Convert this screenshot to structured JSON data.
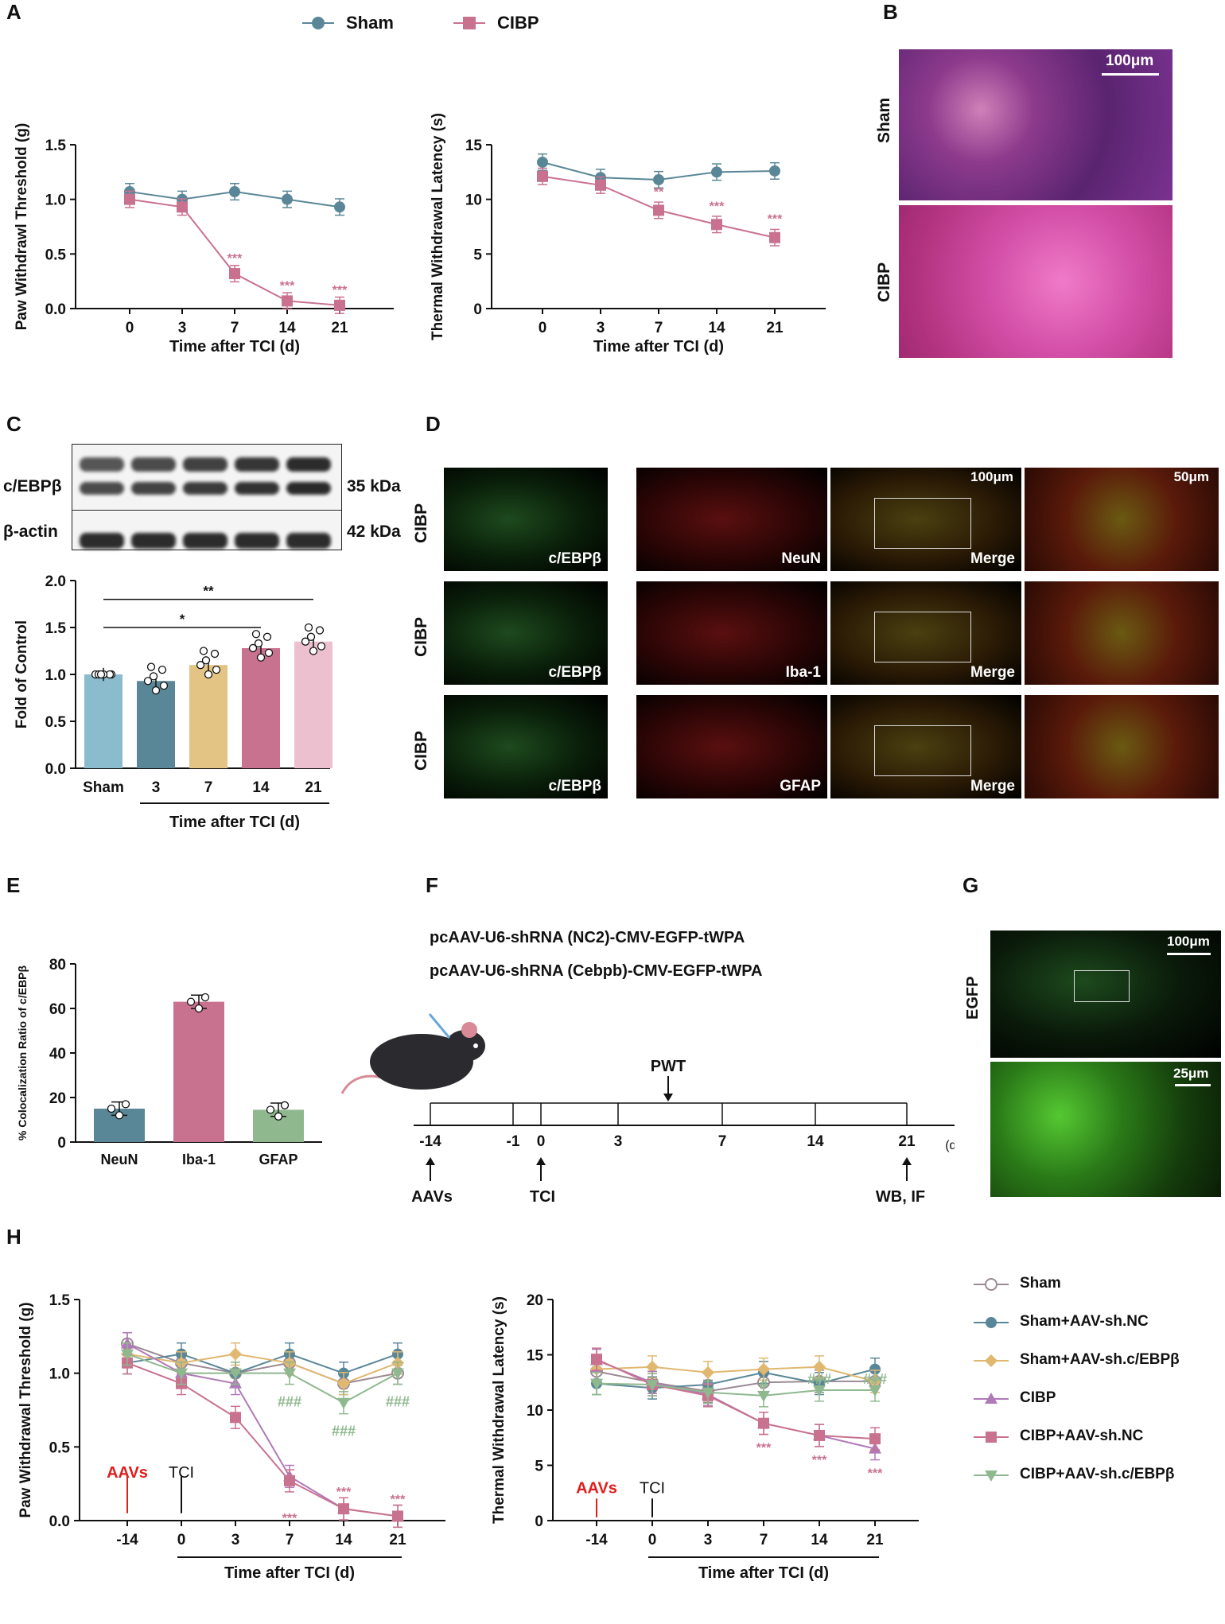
{
  "panels": {
    "A": "A",
    "B": "B",
    "C": "C",
    "D": "D",
    "E": "E",
    "F": "F",
    "G": "G",
    "H": "H"
  },
  "colors": {
    "sham": "#5a8797",
    "cibp": "#c9728f",
    "sham_sh_c": "#e0b870",
    "cibp_tri": "#b07ab8",
    "cibp_sh_c": "#8fb88f",
    "shamopen": "#9b8a94"
  },
  "panelA_legend": [
    "Sham",
    "CIBP"
  ],
  "chart_data": [
    {
      "id": "A_left",
      "type": "line",
      "xlabel": "Time after TCI (d)",
      "ylabel": "Paw Withdrawl Threshold (g)",
      "categories": [
        "0",
        "3",
        "7",
        "14",
        "21"
      ],
      "ylim": [
        0,
        1.5
      ],
      "yticks": [
        "0.0",
        "0.5",
        "1.0",
        "1.5"
      ],
      "series": [
        {
          "name": "Sham",
          "values": [
            1.07,
            1.0,
            1.07,
            1.0,
            0.93
          ]
        },
        {
          "name": "CIBP",
          "values": [
            1.0,
            0.93,
            0.32,
            0.07,
            0.03
          ]
        }
      ],
      "annotations": [
        "",
        "",
        "***",
        "***",
        "***"
      ]
    },
    {
      "id": "A_right",
      "type": "line",
      "xlabel": "Time after TCI (d)",
      "ylabel": "Thermal Withdrawal Latency (s)",
      "categories": [
        "0",
        "3",
        "7",
        "14",
        "21"
      ],
      "ylim": [
        0,
        15
      ],
      "yticks": [
        "0",
        "5",
        "10",
        "15"
      ],
      "series": [
        {
          "name": "Sham",
          "values": [
            13.4,
            12.0,
            11.8,
            12.5,
            12.6
          ]
        },
        {
          "name": "CIBP",
          "values": [
            12.1,
            11.3,
            9.0,
            7.7,
            6.5
          ]
        }
      ],
      "annotations": [
        "",
        "",
        "**",
        "***",
        "***"
      ]
    },
    {
      "id": "C",
      "type": "bar",
      "ylabel": "Fold of Control",
      "categories": [
        "Sham",
        "3",
        "7",
        "14",
        "21"
      ],
      "values": [
        1.0,
        0.93,
        1.1,
        1.28,
        1.35
      ],
      "ylim": [
        0,
        2.0
      ],
      "yticks": [
        "0.0",
        "0.5",
        "1.0",
        "1.5",
        "2.0"
      ],
      "xlabel": "Time after TCI (d)",
      "sig": [
        "*",
        "**"
      ]
    },
    {
      "id": "E",
      "type": "bar",
      "ylabel": "% Colocalization Ratio of c/EBPβ",
      "categories": [
        "NeuN",
        "Iba-1",
        "GFAP"
      ],
      "values": [
        15,
        63,
        14.5
      ],
      "ylim": [
        0,
        80
      ],
      "yticks": [
        "0",
        "20",
        "40",
        "60",
        "80"
      ]
    },
    {
      "id": "H_left",
      "type": "line",
      "xlabel": "Time after TCI (d)",
      "ylabel": "Paw Withdrawal Threshold (g)",
      "categories": [
        "-14",
        "0",
        "3",
        "7",
        "14",
        "21"
      ],
      "ylim": [
        0,
        1.5
      ],
      "yticks": [
        "0.0",
        "0.5",
        "1.0",
        "1.5"
      ],
      "series": [
        {
          "name": "Sham",
          "values": [
            1.2,
            1.07,
            1.0,
            1.07,
            0.93,
            1.0
          ]
        },
        {
          "name": "Sham+AAV-sh.NC",
          "values": [
            1.07,
            1.13,
            1.0,
            1.13,
            1.0,
            1.13
          ]
        },
        {
          "name": "Sham+AAV-sh.c/EBPβ",
          "values": [
            1.13,
            1.07,
            1.13,
            1.07,
            0.93,
            1.07
          ]
        },
        {
          "name": "CIBP",
          "values": [
            1.2,
            1.0,
            0.93,
            0.3,
            0.08,
            0.03
          ]
        },
        {
          "name": "CIBP+AAV-sh.NC",
          "values": [
            1.07,
            0.93,
            0.7,
            0.27,
            0.08,
            0.03
          ]
        },
        {
          "name": "CIBP+AAV-sh.c/EBPβ",
          "values": [
            1.13,
            1.0,
            1.0,
            1.0,
            0.8,
            1.0
          ]
        }
      ],
      "annotations_red": [
        "",
        "",
        "",
        "***",
        "***",
        "***"
      ],
      "annotations_green": [
        "",
        "",
        "",
        "###",
        "###",
        "###"
      ]
    },
    {
      "id": "H_right",
      "type": "line",
      "xlabel": "Time after TCI (d)",
      "ylabel": "Thermal Withdrawal Latency (s)",
      "categories": [
        "-14",
        "0",
        "3",
        "7",
        "14",
        "21"
      ],
      "ylim": [
        0,
        20
      ],
      "yticks": [
        "0",
        "5",
        "10",
        "15",
        "20"
      ],
      "series": [
        {
          "name": "Sham",
          "values": [
            13.5,
            12.5,
            11.7,
            12.5,
            12.6,
            12.6
          ]
        },
        {
          "name": "Sham+AAV-sh.NC",
          "values": [
            12.4,
            12.0,
            12.3,
            13.4,
            12.4,
            13.7
          ]
        },
        {
          "name": "Sham+AAV-sh.c/EBPβ",
          "values": [
            13.7,
            13.9,
            13.4,
            13.7,
            13.9,
            12.6
          ]
        },
        {
          "name": "CIBP",
          "values": [
            14.5,
            12.5,
            11.4,
            8.8,
            7.7,
            6.5
          ]
        },
        {
          "name": "CIBP+AAV-sh.NC",
          "values": [
            14.6,
            12.3,
            11.3,
            8.8,
            7.7,
            7.4
          ]
        },
        {
          "name": "CIBP+AAV-sh.c/EBPβ",
          "values": [
            12.4,
            12.3,
            11.6,
            11.3,
            11.8,
            11.8
          ]
        }
      ],
      "annotations_red": [
        "",
        "",
        "",
        "***",
        "***",
        "***"
      ],
      "annotations_green": [
        "",
        "",
        "",
        "#",
        "###",
        "###"
      ]
    }
  ],
  "panelB": {
    "sham": "Sham",
    "cibp": "CIBP",
    "scale": "100μm"
  },
  "panelC_blot": {
    "row1": "c/EBPβ",
    "row1kda": "35 kDa",
    "row2": "β-actin",
    "row2kda": "42 kDa"
  },
  "panelD": {
    "rows": [
      "CIBP",
      "CIBP",
      "CIBP"
    ],
    "col1": "c/EBPβ",
    "markers": [
      "NeuN",
      "Iba-1",
      "GFAP"
    ],
    "merge": "Merge",
    "scale1": "100μm",
    "scale2": "50μm"
  },
  "panelF": {
    "construct1": "pcAAV-U6-shRNA (NC2)-CMV-EGFP-tWPA",
    "construct2": "pcAAV-U6-shRNA (Cebpb)-CMV-EGFP-tWPA",
    "pwt": "PWT",
    "days": [
      "-14",
      "-1",
      "0",
      "3",
      "7",
      "14",
      "21"
    ],
    "unit": "(d)",
    "aavs": "AAVs",
    "tci": "TCI",
    "wb": "WB, IF"
  },
  "panelG": {
    "label": "EGFP",
    "scale1": "100μm",
    "scale2": "25μm"
  },
  "panelH_arrows": {
    "aavs": "AAVs",
    "tci": "TCI"
  }
}
